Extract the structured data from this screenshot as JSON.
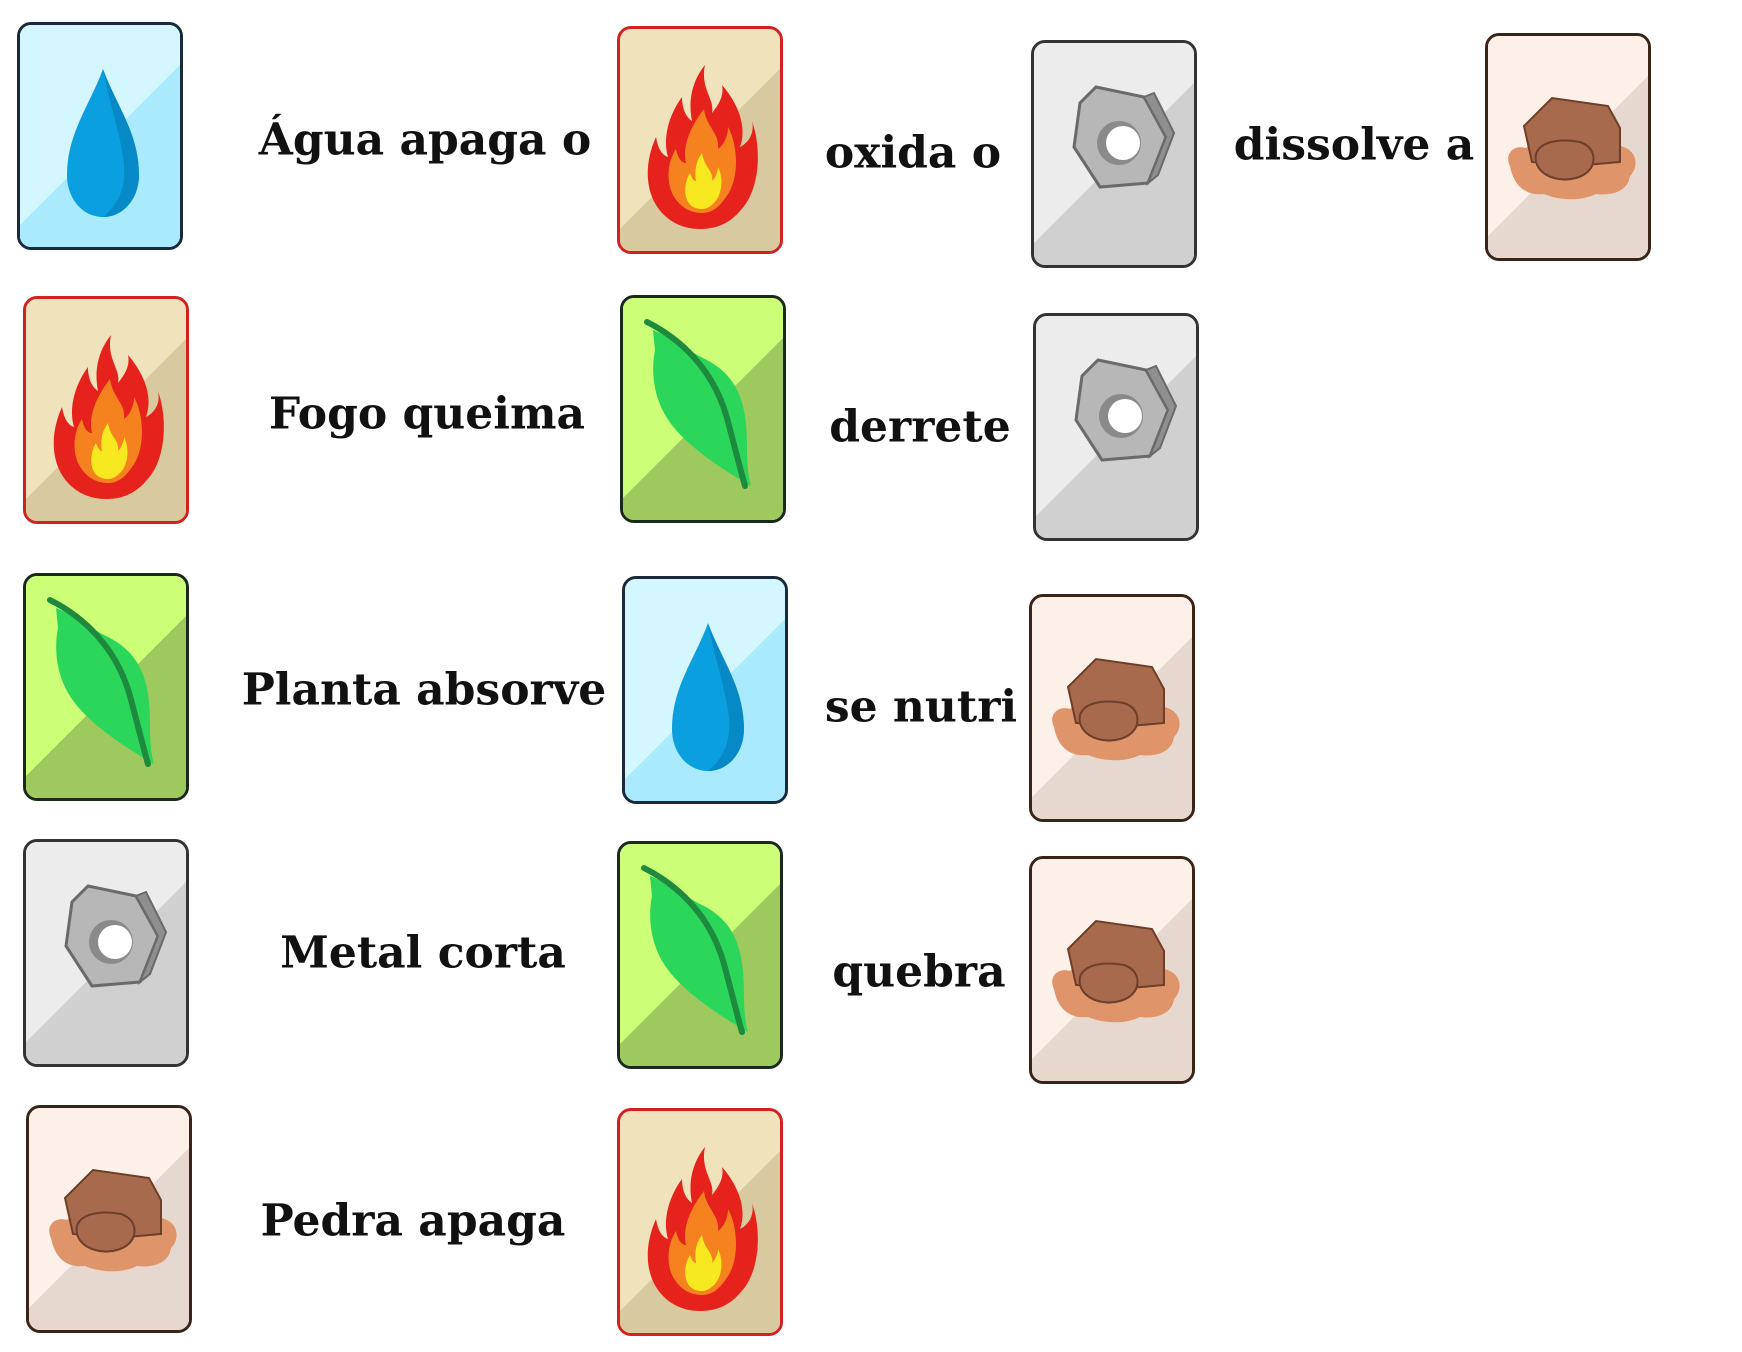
{
  "rules": [
    {
      "subject": "water",
      "verb": "Água apaga o",
      "object": "fire"
    },
    {
      "subject": "fire",
      "verb": "Fogo queima",
      "object": "plant"
    },
    {
      "subject": "plant",
      "verb": "Planta absorve",
      "object": "water"
    },
    {
      "subject": "metal",
      "verb": "Metal corta",
      "object": "plant"
    },
    {
      "subject": "stone",
      "verb": "Pedra apaga",
      "object": "fire"
    }
  ],
  "relations": [
    {
      "verb": "oxida o",
      "object": "metal"
    },
    {
      "verb": "derrete",
      "object": "metal"
    },
    {
      "verb": "se nutri",
      "object": "stone"
    },
    {
      "verb": "quebra",
      "object": "stone"
    },
    {
      "verb": "dissolve a",
      "object": "stone"
    }
  ],
  "elements": {
    "water": {
      "icon": "water-drop-icon",
      "border": "#1a2a3a",
      "bg_light": "#d4f6ff",
      "bg_dark": "#a9eafe"
    },
    "fire": {
      "icon": "flame-icon",
      "border": "#d32020",
      "bg_light": "#f0e2bb",
      "bg_dark": "#d8c99e"
    },
    "plant": {
      "icon": "leaf-icon",
      "border": "#1a2a1a",
      "bg_light": "#ccff77",
      "bg_dark": "#9ec95e"
    },
    "metal": {
      "icon": "hex-nut-icon",
      "border": "#333333",
      "bg_light": "#ececec",
      "bg_dark": "#d0d0d0"
    },
    "stone": {
      "icon": "rock-icon",
      "border": "#3a2418",
      "bg_light": "#fdf0e8",
      "bg_dark": "#e6d8ce"
    }
  }
}
